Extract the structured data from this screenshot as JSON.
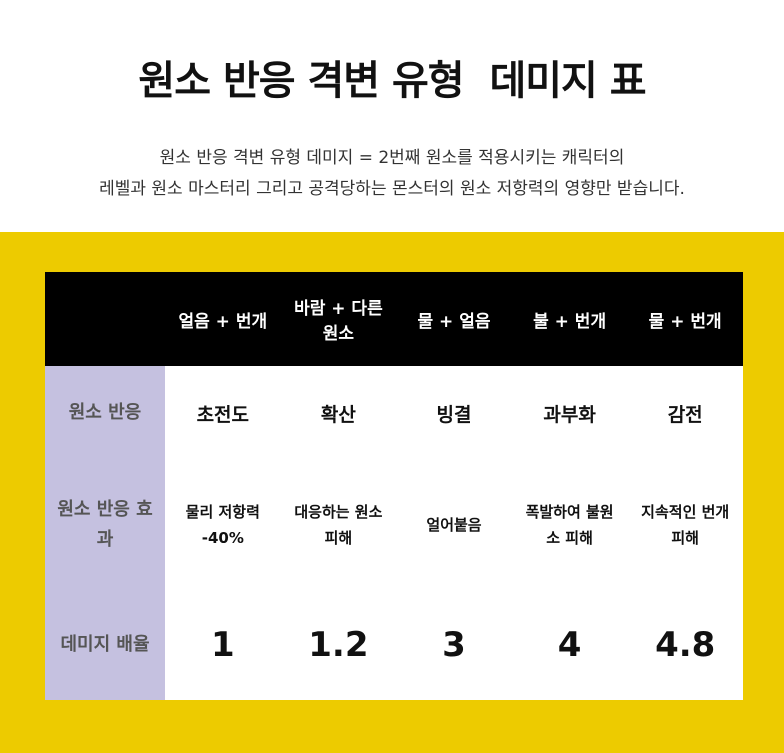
{
  "header": {
    "title": "원소 반응 격변 유형  데미지 표",
    "description": [
      "원소 반응 격변 유형 데미지 = 2번째 원소를 적용시키는 캐릭터의",
      "레벨과 원소 마스터리 그리고 공격당하는 몬스터의 원소 저항력의 영향만 받습니다."
    ]
  },
  "table": {
    "columns": [
      "얼음 + 번개",
      "바람 + 다른 원소",
      "물 + 얼음",
      "불 + 번개",
      "물 + 번개"
    ],
    "rows": [
      {
        "label": "원소 반응",
        "cells": [
          "초전도",
          "확산",
          "빙결",
          "과부화",
          "감전"
        ]
      },
      {
        "label": "원소 반응 효과",
        "cells": [
          "물리 저항력 -40%",
          "대응하는 원소 피해",
          "얼어붙음",
          "폭발하여 불원소 피해",
          "지속적인 번개 피해"
        ]
      },
      {
        "label": "데미지 배율",
        "cells": [
          1,
          1.2,
          3,
          4,
          4.8
        ]
      }
    ]
  }
}
